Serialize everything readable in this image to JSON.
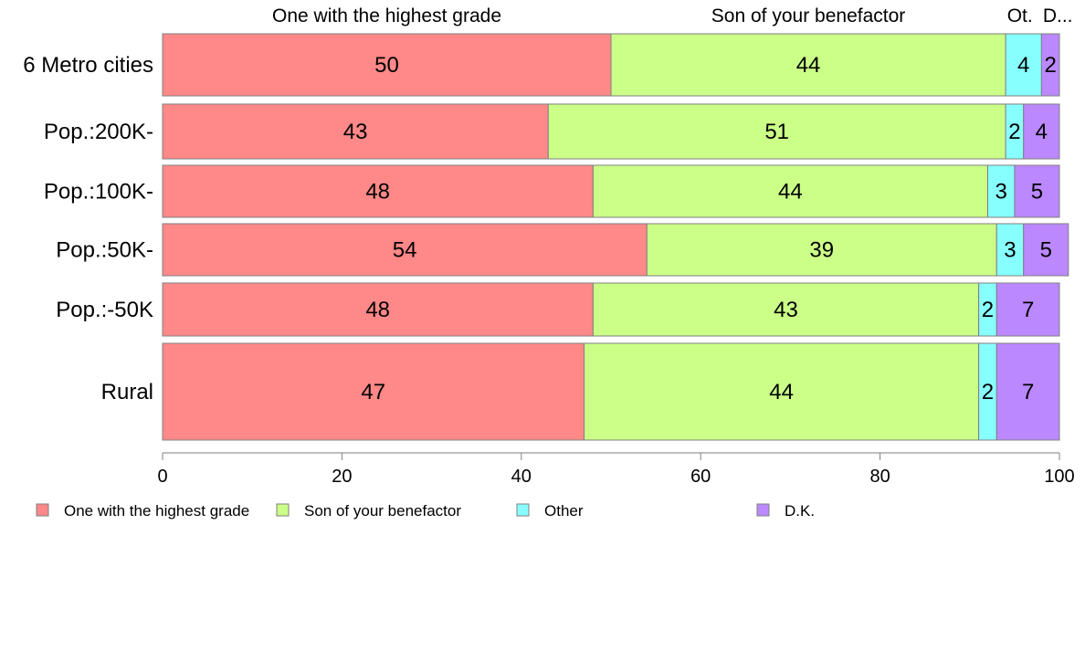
{
  "chart_data": {
    "type": "bar",
    "orientation": "horizontal",
    "stacked": true,
    "categories": [
      "6 Metro cities",
      "Pop.:200K-",
      "Pop.:100K-",
      "Pop.:50K-",
      "Pop.:-50K",
      "Rural"
    ],
    "series": [
      {
        "name": "One with the highest grade",
        "color": "#FF8888",
        "values": [
          50,
          43,
          48,
          54,
          48,
          47
        ]
      },
      {
        "name": "Son of your benefactor",
        "color": "#CCFF88",
        "values": [
          44,
          51,
          44,
          39,
          43,
          44
        ]
      },
      {
        "name": "Other",
        "color": "#88FFFF",
        "values": [
          4,
          2,
          3,
          3,
          2,
          2
        ]
      },
      {
        "name": "D.K.",
        "color": "#BB88FF",
        "values": [
          2,
          4,
          5,
          5,
          7,
          7
        ]
      }
    ],
    "top_labels": [
      "One with the highest grade",
      "Son of your benefactor",
      "Ot.",
      "D..."
    ],
    "xlim": [
      0,
      100
    ],
    "xticks": [
      0,
      20,
      40,
      60,
      80,
      100
    ],
    "grid": false,
    "legend_position": "bottom"
  }
}
